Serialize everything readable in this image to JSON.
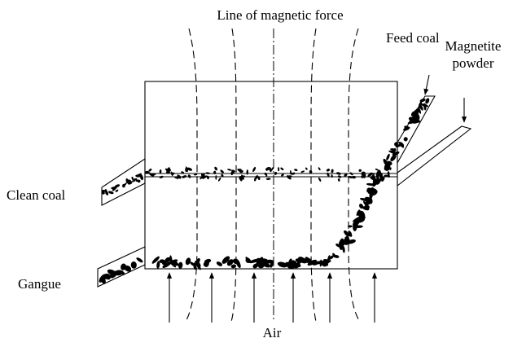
{
  "labels": {
    "magnetic_force": "Line of magnetic force",
    "feed_coal": "Feed coal",
    "magnetite_powder": [
      "Magnetite",
      "powder"
    ],
    "clean_coal": "Clean coal",
    "gangue": "Gangue",
    "air": "Air"
  }
}
